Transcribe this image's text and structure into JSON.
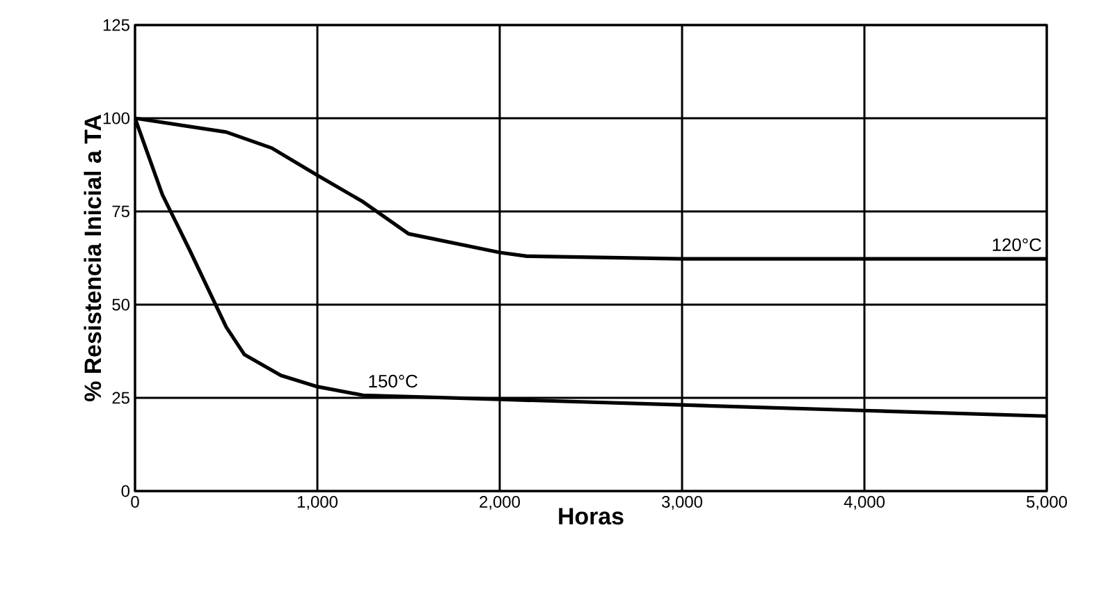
{
  "chart_data": {
    "type": "line",
    "xlabel": "Horas",
    "ylabel": "% Resistencia Inicial a TA",
    "xlim": [
      0,
      5000
    ],
    "ylim": [
      0,
      125
    ],
    "xticks": [
      0,
      {
        "value": 1000,
        "label": "1,000"
      },
      {
        "value": 2000,
        "label": "2,000"
      },
      {
        "value": 3000,
        "label": "3,000"
      },
      {
        "value": 4000,
        "label": "4,000"
      },
      {
        "value": 5000,
        "label": "5,000"
      }
    ],
    "yticks": [
      0,
      25,
      50,
      75,
      100,
      125
    ],
    "grid": true,
    "marker": "none",
    "line_style": "solid",
    "series": [
      {
        "name": "120°C",
        "color": "#000000",
        "x": [
          0,
          500,
          750,
          1000,
          1250,
          1500,
          2000,
          2150,
          3000,
          5000
        ],
        "values": [
          100,
          96.3,
          92,
          84.7,
          77.6,
          69,
          64,
          63,
          62.3,
          62.3
        ]
      },
      {
        "name": "150°C",
        "color": "#000000",
        "x": [
          0,
          150,
          300,
          500,
          600,
          800,
          1000,
          1250,
          2000,
          3000,
          4000,
          5000
        ],
        "values": [
          100,
          79.5,
          64.6,
          44,
          36.6,
          31,
          28,
          25.7,
          24.6,
          23.1,
          21.6,
          20.1
        ]
      }
    ]
  }
}
